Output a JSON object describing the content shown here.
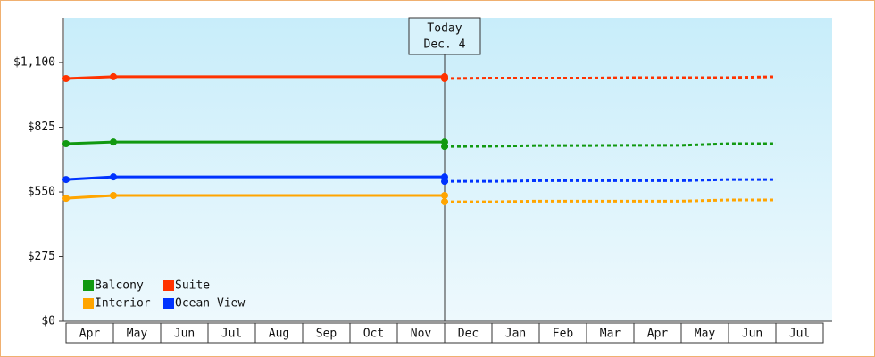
{
  "chart_data": {
    "type": "line",
    "categories": [
      "Apr",
      "May",
      "Jun",
      "Jul",
      "Aug",
      "Sep",
      "Oct",
      "Nov",
      "Dec",
      "Jan",
      "Feb",
      "Mar",
      "Apr",
      "May",
      "Jun",
      "Jul"
    ],
    "series": [
      {
        "name": "Balcony",
        "color": "#119911",
        "values": [
          755,
          762,
          762,
          762,
          762,
          762,
          762,
          762,
          762,
          null,
          null,
          null,
          null,
          null,
          null,
          null
        ],
        "forecast": [
          null,
          null,
          null,
          null,
          null,
          null,
          null,
          null,
          743,
          744,
          747,
          747,
          748,
          748,
          755,
          755
        ]
      },
      {
        "name": "Suite",
        "color": "#ff3300",
        "values": [
          1032,
          1040,
          1040,
          1040,
          1040,
          1040,
          1040,
          1040,
          1040,
          null,
          null,
          null,
          null,
          null,
          null,
          null
        ],
        "forecast": [
          null,
          null,
          null,
          null,
          null,
          null,
          null,
          null,
          1032,
          1034,
          1034,
          1034,
          1036,
          1036,
          1036,
          1040
        ]
      },
      {
        "name": "Interior",
        "color": "#ffa500",
        "values": [
          523,
          535,
          535,
          535,
          535,
          535,
          535,
          535,
          535,
          null,
          null,
          null,
          null,
          null,
          null,
          null
        ],
        "forecast": [
          null,
          null,
          null,
          null,
          null,
          null,
          null,
          null,
          508,
          508,
          511,
          511,
          511,
          511,
          516,
          516
        ]
      },
      {
        "name": "Ocean View",
        "color": "#0033ff",
        "values": [
          603,
          614,
          614,
          614,
          614,
          614,
          614,
          614,
          614,
          null,
          null,
          null,
          null,
          null,
          null,
          null
        ],
        "forecast": [
          null,
          null,
          null,
          null,
          null,
          null,
          null,
          null,
          595,
          595,
          598,
          598,
          598,
          598,
          603,
          603
        ]
      }
    ],
    "annotation": {
      "x": "Dec",
      "lines": [
        "Today",
        "Dec. 4"
      ]
    },
    "ylim": [
      0,
      1290
    ],
    "yticks": [
      {
        "value": 0,
        "label": "$0"
      },
      {
        "value": 275,
        "label": "$275"
      },
      {
        "value": 550,
        "label": "$550"
      },
      {
        "value": 825,
        "label": "$825"
      },
      {
        "value": 1100,
        "label": "$1,100"
      }
    ],
    "legend": "bottom-left"
  }
}
